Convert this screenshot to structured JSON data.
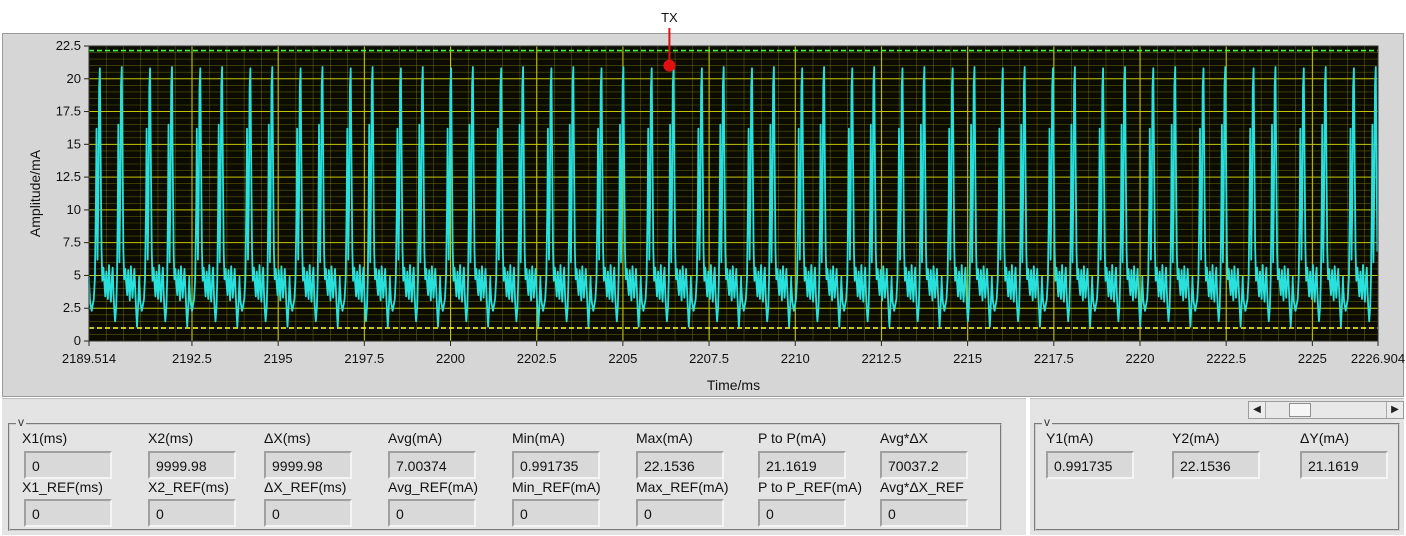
{
  "chart_data": {
    "type": "line",
    "xlabel": "Time/ms",
    "ylabel": "Amplitude/mA",
    "xlim": [
      2189.514,
      2226.904
    ],
    "ylim": [
      0,
      22.5
    ],
    "x_ticks": [
      "2189.514",
      "2192.5",
      "2195",
      "2197.5",
      "2200",
      "2202.5",
      "2205",
      "2207.5",
      "2210",
      "2212.5",
      "2215",
      "2217.5",
      "2220",
      "2222.5",
      "2225",
      "2226.904"
    ],
    "y_ticks": [
      "22.5",
      "20",
      "17.5",
      "15",
      "12.5",
      "10",
      "7.5",
      "5",
      "2.5",
      "0"
    ],
    "grid": true,
    "series": [
      {
        "color": "#28e0dc",
        "period_ms": 1.455,
        "first_peak_ms": 2190.28,
        "peak_mA": 20.9,
        "baseline_mA": 4.8,
        "trough_mA": 1.1,
        "points": [
          [
            0.0,
            4.5
          ],
          [
            0.04,
            3.0
          ],
          [
            0.1,
            2.3
          ],
          [
            0.18,
            3.2
          ],
          [
            0.22,
            4.8
          ],
          [
            0.26,
            10.5
          ],
          [
            0.28,
            16.2
          ],
          [
            0.3,
            11.0
          ],
          [
            0.32,
            6.2
          ],
          [
            0.35,
            10.5
          ],
          [
            0.38,
            19.3
          ],
          [
            0.41,
            20.8
          ],
          [
            0.44,
            13.5
          ],
          [
            0.47,
            7.0
          ],
          [
            0.5,
            4.6
          ],
          [
            0.54,
            5.6
          ],
          [
            0.58,
            4.3
          ],
          [
            0.61,
            3.4
          ],
          [
            0.65,
            5.3
          ],
          [
            0.68,
            4.0
          ],
          [
            0.71,
            3.2
          ],
          [
            0.75,
            5.8
          ],
          [
            0.78,
            4.2
          ],
          [
            0.82,
            3.0
          ],
          [
            0.86,
            4.9
          ],
          [
            0.89,
            5.6
          ],
          [
            0.92,
            3.6
          ],
          [
            0.95,
            2.4
          ],
          [
            0.98,
            1.5
          ],
          [
            1.02,
            2.6
          ],
          [
            1.05,
            4.8
          ],
          [
            1.08,
            10.0
          ],
          [
            1.1,
            16.5
          ],
          [
            1.12,
            10.8
          ],
          [
            1.14,
            6.0
          ],
          [
            1.17,
            11.0
          ],
          [
            1.2,
            19.5
          ],
          [
            1.23,
            20.9
          ],
          [
            1.26,
            13.0
          ],
          [
            1.29,
            6.8
          ],
          [
            1.32,
            4.7
          ],
          [
            1.36,
            5.5
          ],
          [
            1.4,
            4.2
          ],
          [
            1.43,
            3.5
          ],
          [
            1.47,
            5.4
          ],
          [
            1.5,
            4.1
          ],
          [
            1.53,
            3.1
          ],
          [
            1.57,
            5.7
          ],
          [
            1.6,
            4.4
          ],
          [
            1.63,
            3.3
          ],
          [
            1.67,
            4.6
          ],
          [
            1.7,
            5.5
          ],
          [
            1.74,
            3.6
          ],
          [
            1.77,
            2.3
          ],
          [
            1.8,
            1.1
          ],
          [
            1.84,
            2.7
          ],
          [
            1.88,
            4.9
          ]
        ]
      }
    ],
    "reference_lines": [
      {
        "name": "upper",
        "y_mA": 22.1536,
        "color": "#3dff3d"
      },
      {
        "name": "lower",
        "y_mA": 0.991735,
        "color": "#ffff33"
      }
    ],
    "cursor": {
      "label": "TX",
      "x_ms": 2206.35,
      "y_mA": 21.0,
      "color": "#e01010"
    },
    "colors": {
      "plot_bg": "#0b0b00",
      "grid": "#8c8c00"
    }
  },
  "measurements": {
    "group_label": "v",
    "row1": [
      {
        "label": "X1(ms)",
        "value": "0"
      },
      {
        "label": "X2(ms)",
        "value": "9999.98"
      },
      {
        "label": "ΔX(ms)",
        "value": "9999.98"
      },
      {
        "label": "Avg(mA)",
        "value": "7.00374"
      },
      {
        "label": "Min(mA)",
        "value": "0.991735"
      },
      {
        "label": "Max(mA)",
        "value": "22.1536"
      },
      {
        "label": "P to P(mA)",
        "value": "21.1619"
      },
      {
        "label": "Avg*ΔX",
        "value": "70037.2"
      }
    ],
    "row2": [
      {
        "label": "X1_REF(ms)",
        "value": "0"
      },
      {
        "label": "X2_REF(ms)",
        "value": "0"
      },
      {
        "label": "ΔX_REF(ms)",
        "value": "0"
      },
      {
        "label": "Avg_REF(mA)",
        "value": "0"
      },
      {
        "label": "Min_REF(mA)",
        "value": "0"
      },
      {
        "label": "Max_REF(mA)",
        "value": "0"
      },
      {
        "label": "P to P_REF(mA)",
        "value": "0"
      },
      {
        "label": "Avg*ΔX_REF",
        "value": "0"
      }
    ]
  },
  "y_measurements": {
    "group_label": "v",
    "fields": [
      {
        "label": "Y1(mA)",
        "value": "0.991735"
      },
      {
        "label": "Y2(mA)",
        "value": "22.1536"
      },
      {
        "label": "ΔY(mA)",
        "value": "21.1619"
      }
    ]
  },
  "scrollbar": {
    "left_icon": "arrow-left-icon",
    "right_icon": "arrow-right-icon"
  }
}
